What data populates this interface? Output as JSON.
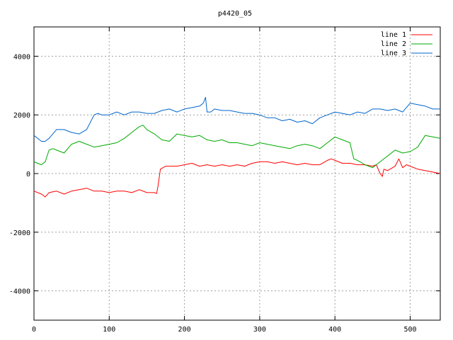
{
  "chart_data": {
    "type": "line",
    "title": "p4420_05",
    "xlabel": "",
    "ylabel": "",
    "xlim": [
      0,
      540
    ],
    "ylim": [
      -5000,
      5000
    ],
    "xticks": [
      0,
      100,
      200,
      300,
      400,
      500
    ],
    "yticks": [
      -4000,
      -2000,
      0,
      2000,
      4000
    ],
    "grid": true,
    "legend_position": "top-right",
    "series": [
      {
        "name": "line 1",
        "color": "#ff0000",
        "x": [
          0,
          10,
          15,
          20,
          30,
          40,
          50,
          60,
          70,
          80,
          90,
          100,
          110,
          120,
          130,
          140,
          150,
          160,
          163,
          165,
          168,
          175,
          190,
          200,
          210,
          220,
          230,
          240,
          250,
          260,
          270,
          280,
          290,
          300,
          310,
          320,
          330,
          340,
          350,
          360,
          370,
          380,
          390,
          395,
          400,
          410,
          420,
          430,
          440,
          450,
          455,
          460,
          463,
          465,
          470,
          480,
          485,
          490,
          495,
          500,
          510,
          520,
          530,
          540
        ],
        "y": [
          -600,
          -700,
          -800,
          -650,
          -600,
          -700,
          -600,
          -550,
          -500,
          -600,
          -600,
          -650,
          -600,
          -600,
          -650,
          -550,
          -650,
          -650,
          -680,
          -400,
          150,
          250,
          250,
          300,
          350,
          250,
          300,
          250,
          300,
          250,
          300,
          250,
          350,
          400,
          400,
          350,
          400,
          350,
          300,
          350,
          300,
          300,
          450,
          500,
          450,
          350,
          350,
          300,
          300,
          250,
          300,
          0,
          -100,
          150,
          100,
          250,
          500,
          200,
          300,
          250,
          150,
          100,
          50,
          0
        ]
      },
      {
        "name": "line 2",
        "color": "#00aa00",
        "x": [
          0,
          10,
          15,
          20,
          25,
          30,
          40,
          50,
          60,
          70,
          80,
          90,
          100,
          110,
          120,
          130,
          140,
          145,
          150,
          160,
          170,
          180,
          190,
          200,
          210,
          220,
          230,
          240,
          250,
          260,
          270,
          280,
          290,
          300,
          310,
          320,
          330,
          340,
          350,
          360,
          370,
          380,
          390,
          400,
          410,
          420,
          425,
          430,
          440,
          450,
          455,
          460,
          470,
          480,
          490,
          500,
          510,
          520,
          530,
          540
        ],
        "y": [
          400,
          300,
          400,
          800,
          850,
          800,
          700,
          1000,
          1100,
          1000,
          900,
          950,
          1000,
          1050,
          1200,
          1400,
          1600,
          1650,
          1500,
          1350,
          1150,
          1100,
          1350,
          1300,
          1250,
          1300,
          1150,
          1100,
          1150,
          1050,
          1050,
          1000,
          950,
          1050,
          1000,
          950,
          900,
          850,
          950,
          1000,
          950,
          850,
          1050,
          1250,
          1150,
          1050,
          500,
          450,
          300,
          200,
          300,
          400,
          600,
          800,
          700,
          750,
          900,
          1300,
          1250,
          1200
        ]
      },
      {
        "name": "line 3",
        "color": "#0066cc",
        "x": [
          0,
          10,
          15,
          20,
          30,
          40,
          50,
          60,
          70,
          80,
          85,
          90,
          100,
          110,
          120,
          130,
          140,
          150,
          160,
          170,
          180,
          190,
          200,
          210,
          220,
          225,
          228,
          230,
          235,
          240,
          250,
          260,
          270,
          280,
          290,
          300,
          310,
          320,
          330,
          340,
          350,
          360,
          370,
          380,
          390,
          400,
          410,
          420,
          430,
          440,
          450,
          460,
          470,
          480,
          490,
          500,
          510,
          520,
          530,
          540
        ],
        "y": [
          1300,
          1100,
          1100,
          1200,
          1500,
          1500,
          1400,
          1350,
          1500,
          2000,
          2050,
          2000,
          2000,
          2100,
          2000,
          2100,
          2100,
          2050,
          2050,
          2150,
          2200,
          2100,
          2200,
          2250,
          2300,
          2400,
          2600,
          2100,
          2100,
          2200,
          2150,
          2150,
          2100,
          2050,
          2050,
          2000,
          1900,
          1900,
          1800,
          1850,
          1750,
          1800,
          1700,
          1900,
          2000,
          2100,
          2050,
          2000,
          2100,
          2050,
          2200,
          2200,
          2150,
          2200,
          2100,
          2400,
          2350,
          2300,
          2200,
          2200
        ]
      }
    ]
  }
}
